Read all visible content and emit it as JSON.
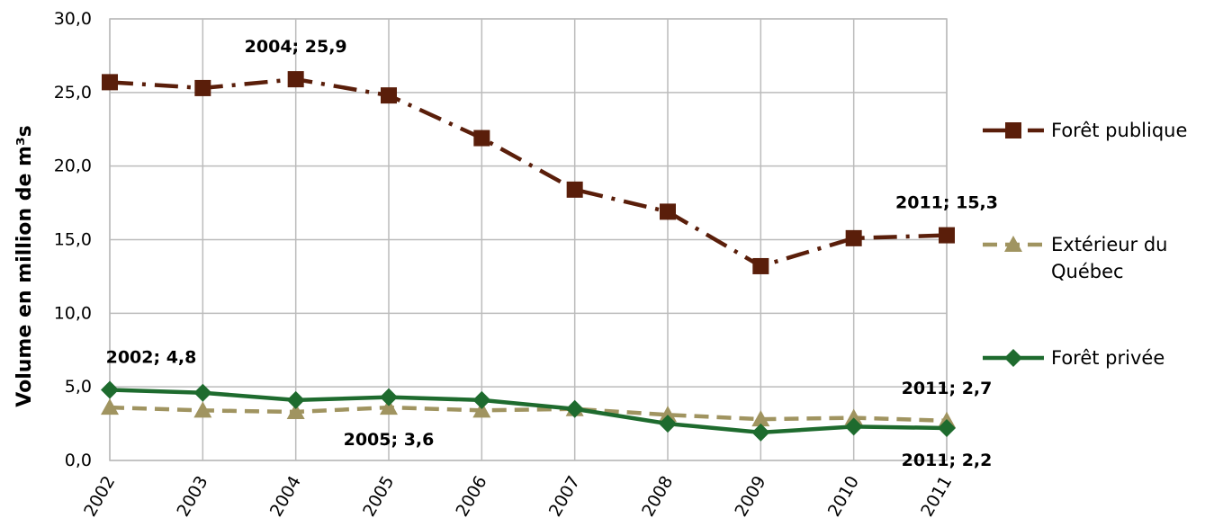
{
  "chart_data": {
    "type": "line",
    "y_label": "Volume en million de m³s",
    "x": [
      2002,
      2003,
      2004,
      2005,
      2006,
      2007,
      2008,
      2009,
      2010,
      2011
    ],
    "xlim": [
      2002,
      2011
    ],
    "xticks": [
      2002,
      2003,
      2004,
      2005,
      2006,
      2007,
      2008,
      2009,
      2010,
      2011
    ],
    "ylim": [
      0,
      30
    ],
    "yticks": [
      {
        "value": 0,
        "label": "0,0"
      },
      {
        "value": 5,
        "label": "5,0"
      },
      {
        "value": 10,
        "label": "10,0"
      },
      {
        "value": 15,
        "label": "15,0"
      },
      {
        "value": 20,
        "label": "20,0"
      },
      {
        "value": 25,
        "label": "25,0"
      },
      {
        "value": 30,
        "label": "30,0"
      }
    ],
    "grid": true,
    "legend": "right",
    "series": [
      {
        "name": "Forêt publique",
        "color": "#5a1e0a",
        "marker": "square",
        "dash": "dash-dot",
        "values": [
          25.7,
          25.3,
          25.9,
          24.8,
          21.9,
          18.4,
          16.9,
          13.2,
          15.1,
          15.3
        ],
        "value_labels": [
          null,
          null,
          "2004; 25,9",
          null,
          null,
          null,
          null,
          null,
          null,
          "2011; 15,3"
        ]
      },
      {
        "name": "Extérieur du Québec",
        "color": "#a09460",
        "marker": "triangle",
        "dash": "dashed",
        "values": [
          3.6,
          3.4,
          3.3,
          3.6,
          3.4,
          3.5,
          3.1,
          2.8,
          2.9,
          2.7
        ],
        "value_labels": [
          null,
          null,
          null,
          "2005; 3,6",
          null,
          null,
          null,
          null,
          null,
          "2011; 2,7"
        ]
      },
      {
        "name": "Forêt privée",
        "color": "#1e6b2e",
        "marker": "diamond",
        "dash": "solid",
        "values": [
          4.8,
          4.6,
          4.1,
          4.3,
          4.1,
          3.5,
          2.5,
          1.9,
          2.3,
          2.2
        ],
        "value_labels": [
          "2002; 4,8",
          null,
          null,
          null,
          null,
          null,
          null,
          null,
          null,
          "2011; 2,2"
        ]
      }
    ]
  }
}
